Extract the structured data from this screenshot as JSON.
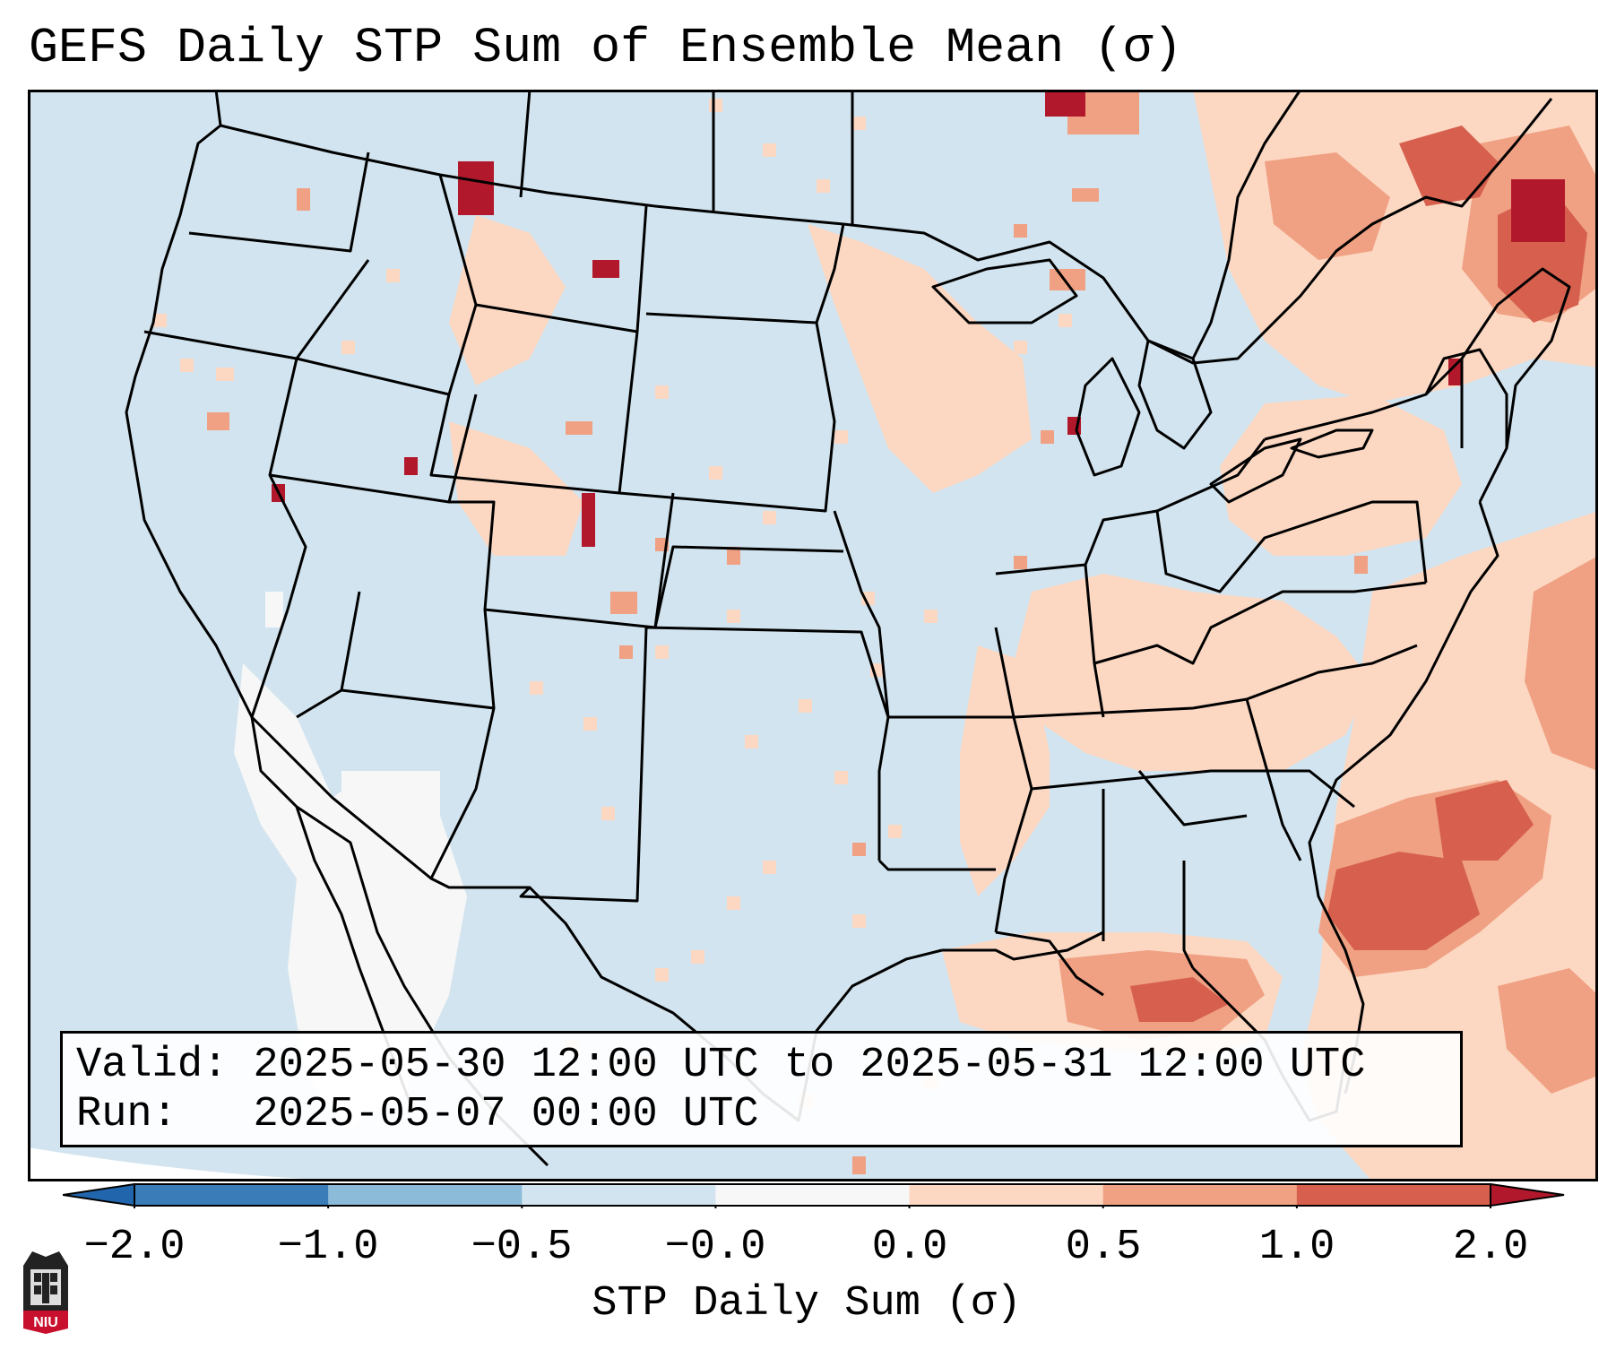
{
  "title": "GEFS Daily STP Sum of Ensemble Mean (σ)",
  "info": {
    "valid_label": "Valid:",
    "valid_value": "2025-05-30 12:00 UTC to 2025-05-31 12:00 UTC",
    "run_label": "Run:",
    "run_value": "2025-05-07 00:00 UTC"
  },
  "colorbar": {
    "label": "STP Daily Sum (σ)",
    "ticks": [
      "−2.0",
      "−1.0",
      "−0.5",
      "−0.0",
      "0.0",
      "0.5",
      "1.0",
      "2.0"
    ],
    "colors": [
      "#3a7cb8",
      "#8bbbd9",
      "#d2e4ef",
      "#f7f7f7",
      "#fcd8c3",
      "#f0a183",
      "#d6604d",
      "#b2182b"
    ],
    "extend": "both"
  },
  "map": {
    "region": "Contiguous United States and adjacent Canada, Mexico, Gulf of Mexico, western Atlantic",
    "background_level": "−0.5 to −0.0",
    "land_fill": "#d2e4ef"
  },
  "logo": {
    "text": "NIU"
  }
}
